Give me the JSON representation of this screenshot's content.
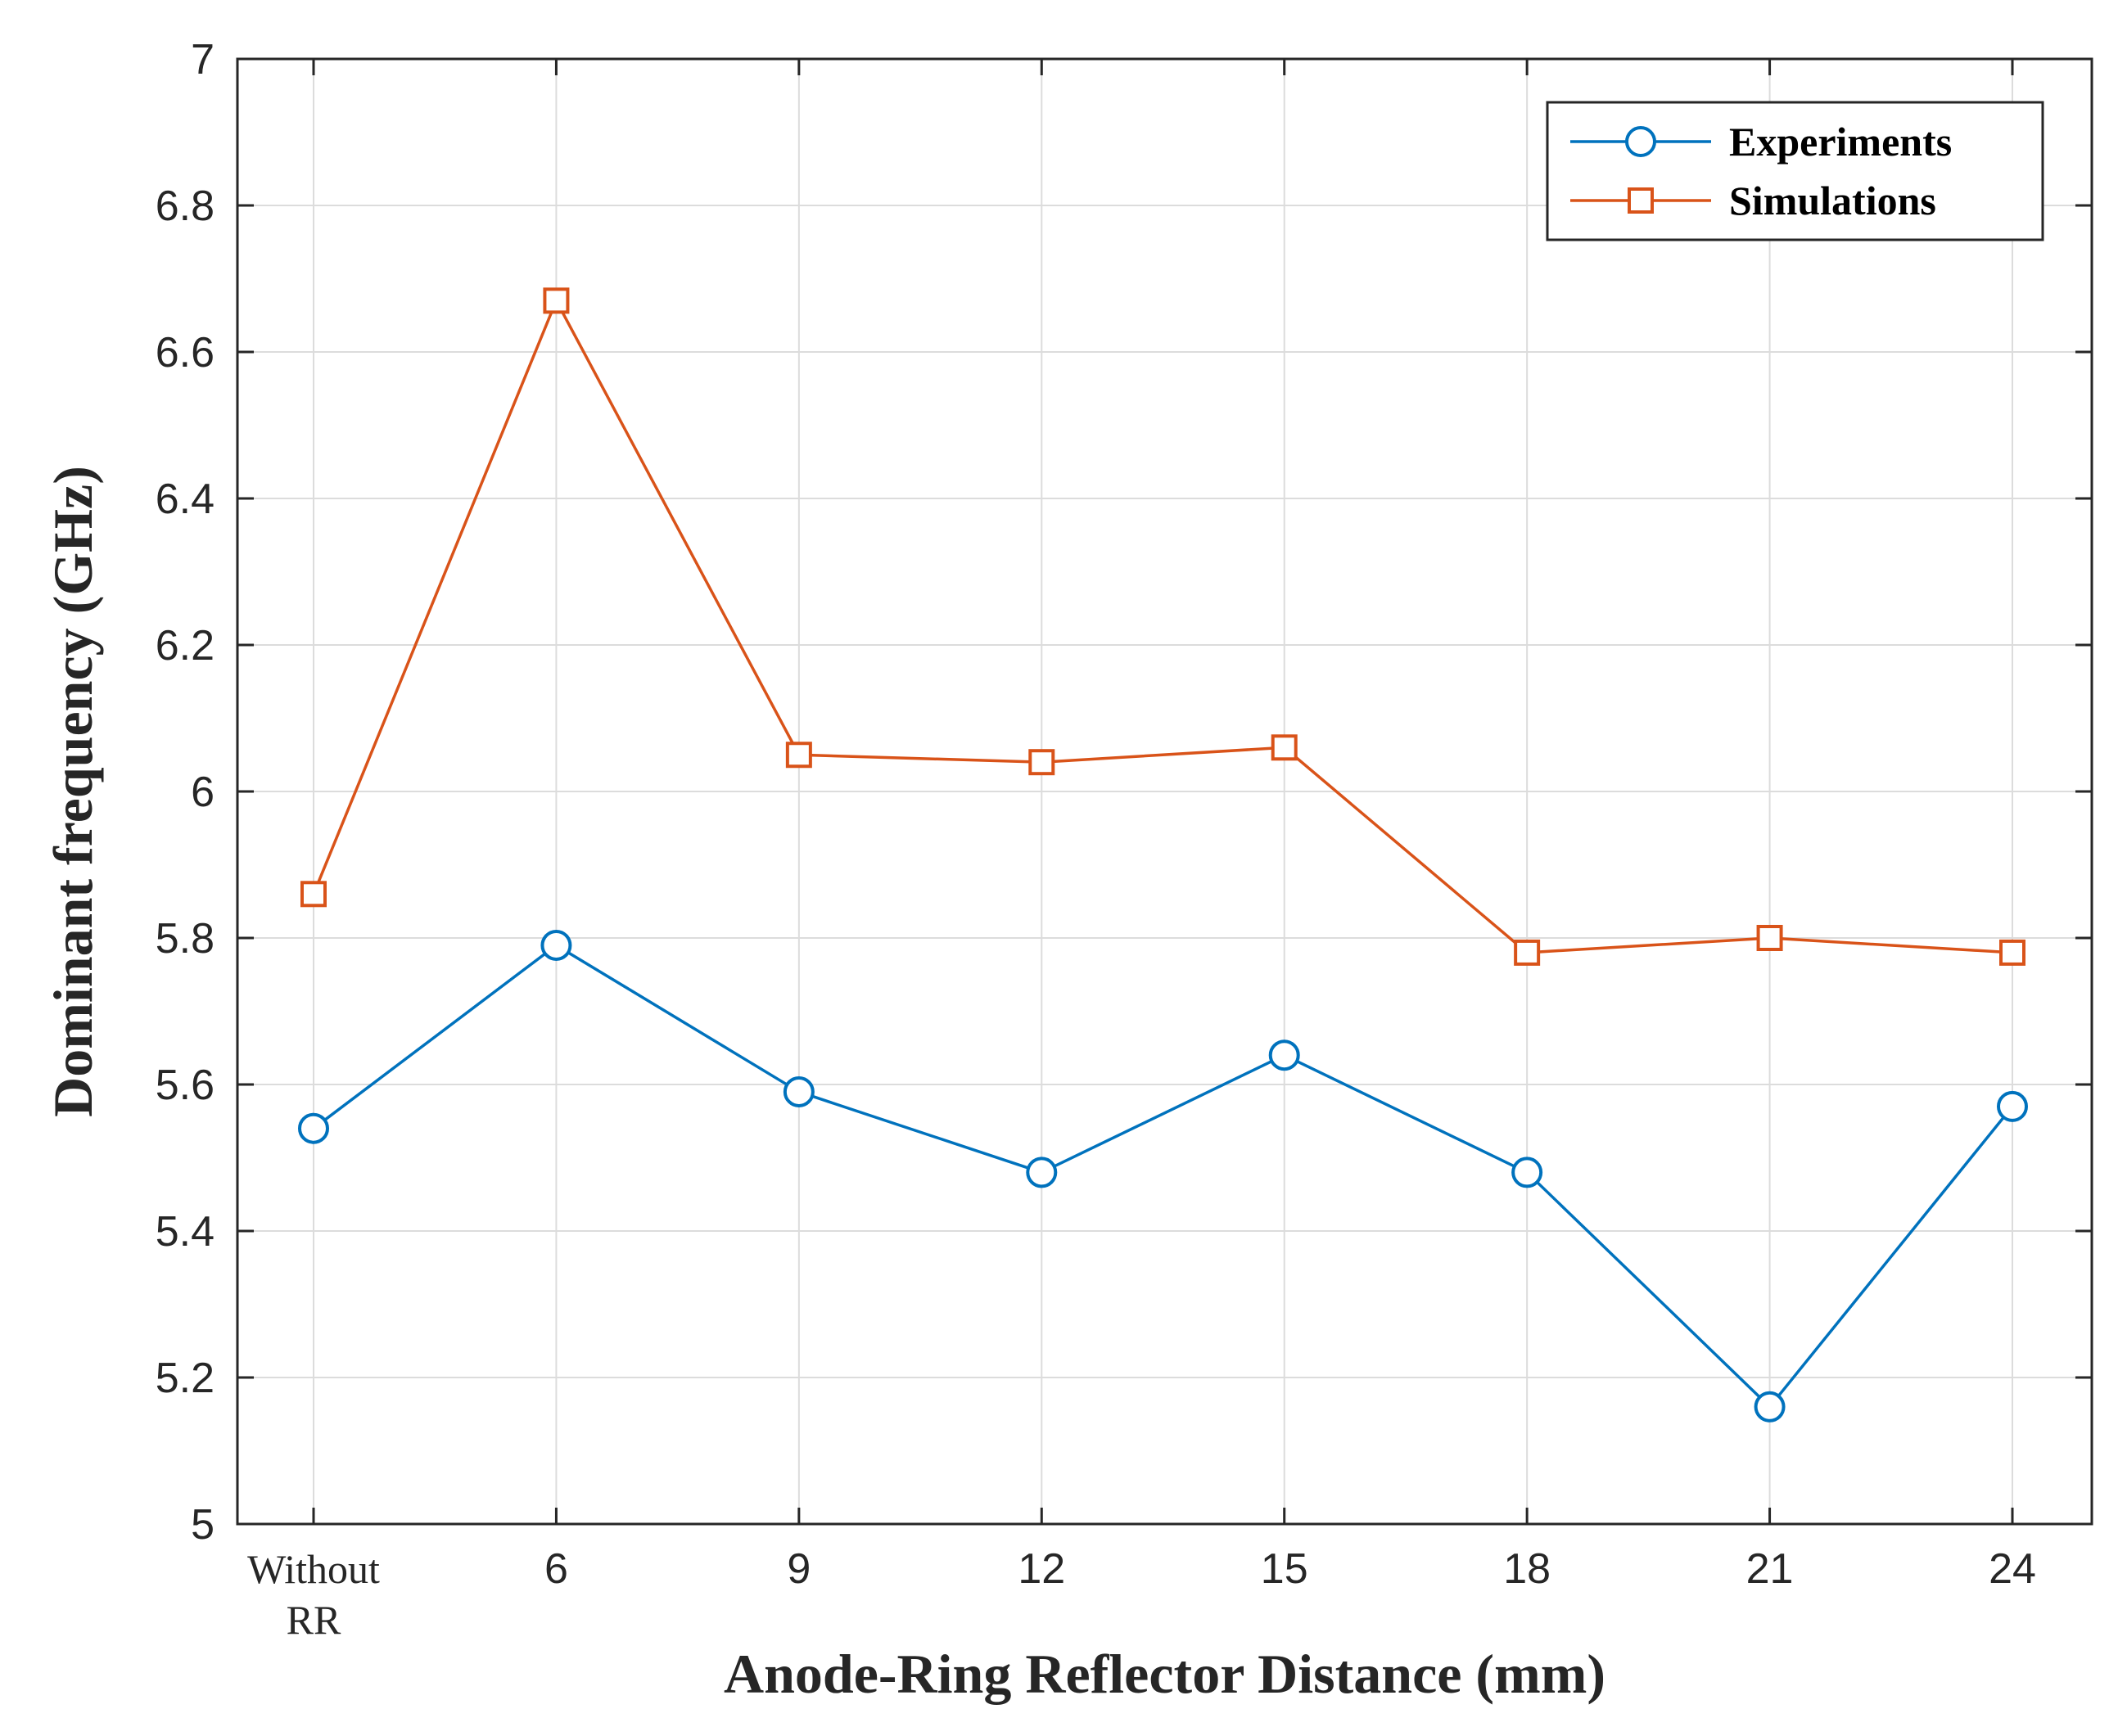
{
  "chart_data": {
    "type": "line",
    "categories": [
      [
        "Without",
        "RR"
      ],
      [
        "6"
      ],
      [
        "9"
      ],
      [
        "12"
      ],
      [
        "15"
      ],
      [
        "18"
      ],
      [
        "21"
      ],
      [
        "24"
      ]
    ],
    "series": [
      {
        "name": "Experiments",
        "color": "#0072BD",
        "marker": "circle",
        "values": [
          5.54,
          5.79,
          5.59,
          5.48,
          5.64,
          5.48,
          5.16,
          5.57
        ]
      },
      {
        "name": "Simulations",
        "color": "#D95319",
        "marker": "square",
        "values": [
          5.86,
          6.67,
          6.05,
          6.04,
          6.06,
          5.78,
          5.8,
          5.78
        ]
      }
    ],
    "yticks": [
      "5",
      "5.2",
      "5.4",
      "5.6",
      "5.8",
      "6",
      "6.2",
      "6.4",
      "6.6",
      "6.8",
      "7"
    ],
    "ylim": [
      5,
      7
    ],
    "xlabel": "Anode-Ring Reflector Distance (mm)",
    "ylabel": "Dominant frequency (GHz)",
    "grid": true,
    "legend_position": "top-right"
  }
}
